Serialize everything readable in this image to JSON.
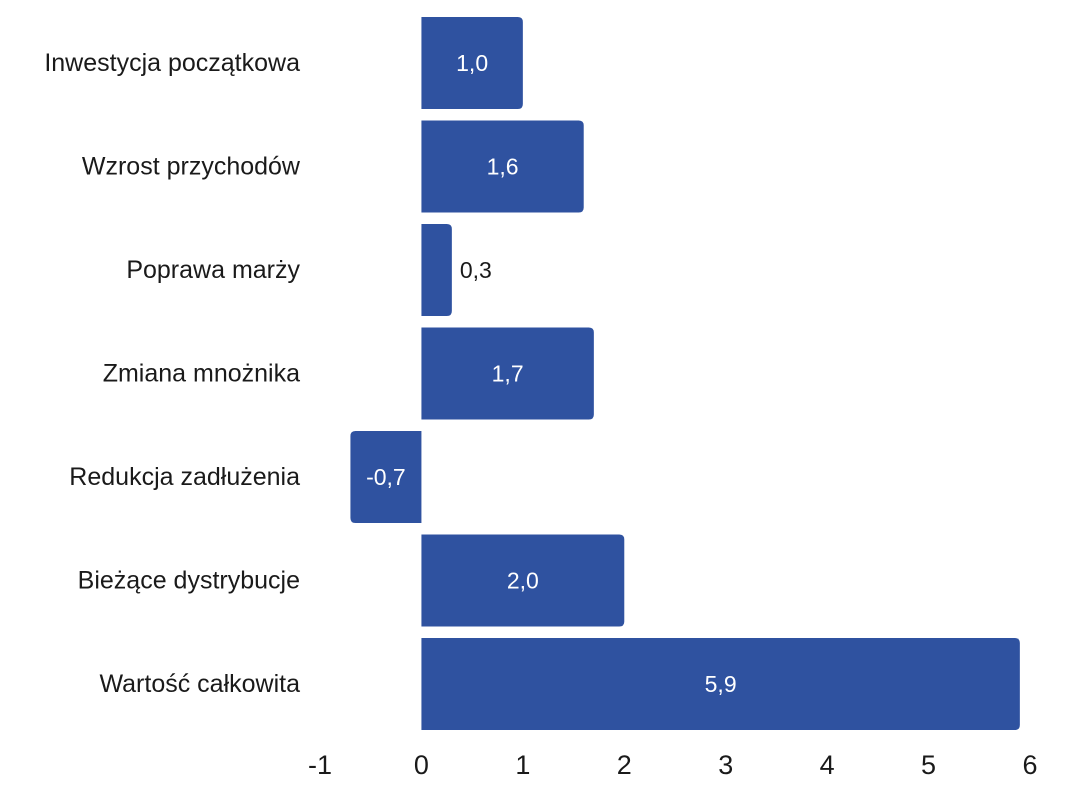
{
  "chart_data": {
    "type": "bar",
    "orientation": "horizontal",
    "categories": [
      "Inwestycja początkowa",
      "Wzrost przychodów",
      "Poprawa marży",
      "Zmiana mnożnika",
      "Redukcja zadłużenia",
      "Bieżące dystrybucje",
      "Wartość całkowita"
    ],
    "values": [
      1.0,
      1.6,
      0.3,
      1.7,
      -0.7,
      2.0,
      5.9
    ],
    "data_labels": [
      "1,0",
      "1,6",
      "0,3",
      "1,7",
      "-0,7",
      "2,0",
      "5,9"
    ],
    "xlim": [
      -1,
      6
    ],
    "x_ticks": [
      -1,
      0,
      1,
      2,
      3,
      4,
      5,
      6
    ],
    "x_tick_labels": [
      "-1",
      "0",
      "1",
      "2",
      "3",
      "4",
      "5",
      "6"
    ],
    "title": "",
    "xlabel": "",
    "ylabel": "",
    "grid": false,
    "legend": "none"
  },
  "colors": {
    "bar": "#2f52a0",
    "label_inside": "#ffffff",
    "label_outside": "#1a1a1a",
    "text": "#1a1a1a",
    "background": "#ffffff"
  }
}
